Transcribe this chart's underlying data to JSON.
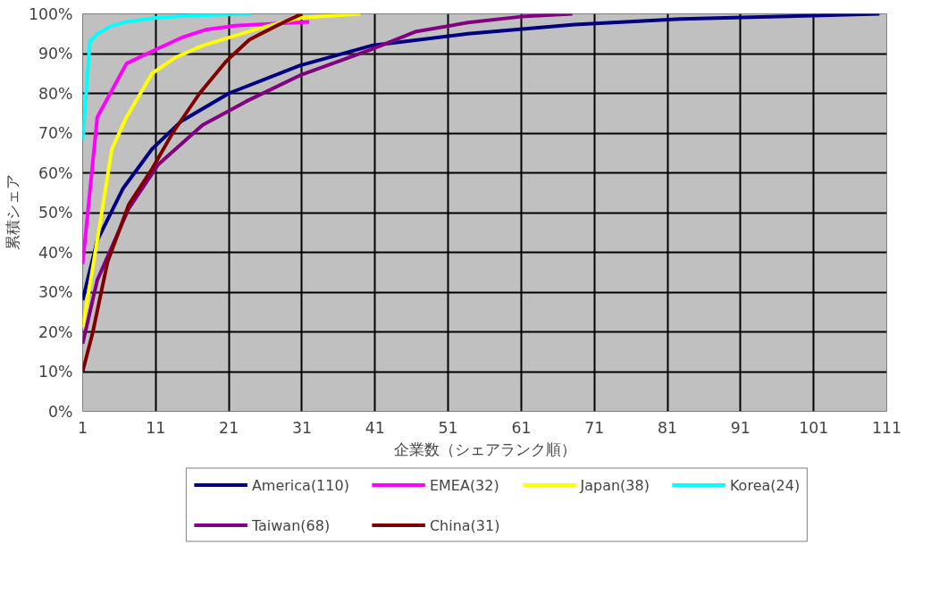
{
  "chart_data": {
    "type": "line",
    "xlabel": "企業数（シェアランク順）",
    "ylabel": "累積シェア",
    "xlim": [
      1,
      111
    ],
    "xticks": [
      1,
      11,
      21,
      31,
      41,
      51,
      61,
      71,
      81,
      91,
      101,
      111
    ],
    "ylim": [
      0,
      100
    ],
    "yticks": [
      {
        "value": 0,
        "label": "0%"
      },
      {
        "value": 10,
        "label": "10%"
      },
      {
        "value": 20,
        "label": "20%"
      },
      {
        "value": 30,
        "label": "30%"
      },
      {
        "value": 40,
        "label": "40%"
      },
      {
        "value": 50,
        "label": "50%"
      },
      {
        "value": 60,
        "label": "60%"
      },
      {
        "value": 70,
        "label": "70%"
      },
      {
        "value": 80,
        "label": "80%"
      },
      {
        "value": 90,
        "label": "90%"
      },
      {
        "value": 100,
        "label": "100%"
      }
    ],
    "grid": true,
    "legend": "bottom",
    "marker": "none",
    "line_style": "solid",
    "series": [
      {
        "name": "America(110)",
        "color": "#000080",
        "x": [
          1,
          3,
          6.5,
          10.5,
          14.5,
          21,
          30.7,
          40.5,
          53.7,
          68.3,
          82.8,
          97.4,
          110
        ],
        "values": [
          28,
          43,
          56,
          66,
          73,
          80,
          87,
          92,
          95,
          97.3,
          98.7,
          99.4,
          100
        ]
      },
      {
        "name": "EMEA(32)",
        "color": "#ff00ff",
        "x": [
          1,
          3,
          7,
          11,
          14.5,
          17.8,
          21.8,
          32
        ],
        "values": [
          37,
          74,
          87.5,
          91,
          94,
          96,
          97,
          98
        ]
      },
      {
        "name": "Japan(38)",
        "color": "#ffff00",
        "x": [
          1,
          3,
          5,
          7,
          10.5,
          13.7,
          17.4,
          21,
          25.4,
          30.7,
          39
        ],
        "values": [
          21,
          43,
          66,
          74,
          85,
          89,
          92,
          94,
          96.5,
          99,
          100
        ]
      },
      {
        "name": "Korea(24)",
        "color": "#00ffff",
        "x": [
          1,
          2,
          3,
          5,
          7,
          11,
          16,
          24
        ],
        "values": [
          68,
          93,
          95,
          97,
          98,
          99,
          99.6,
          100
        ]
      },
      {
        "name": "Taiwan(68)",
        "color": "#800080",
        "x": [
          1,
          3,
          7.3,
          11.3,
          17.4,
          23.4,
          30.7,
          40.4,
          46.5,
          53.7,
          61,
          68
        ],
        "values": [
          17,
          33,
          51,
          62,
          72,
          78,
          84.5,
          91,
          95.5,
          97.8,
          99.3,
          100
        ]
      },
      {
        "name": "China(31)",
        "color": "#800000",
        "x": [
          1,
          2.4,
          4.4,
          7.3,
          10.5,
          13.3,
          17,
          20.6,
          23.8,
          27.5,
          31
        ],
        "values": [
          10,
          20,
          37.5,
          52,
          61,
          70,
          80,
          88,
          93.5,
          97,
          100
        ]
      }
    ]
  }
}
